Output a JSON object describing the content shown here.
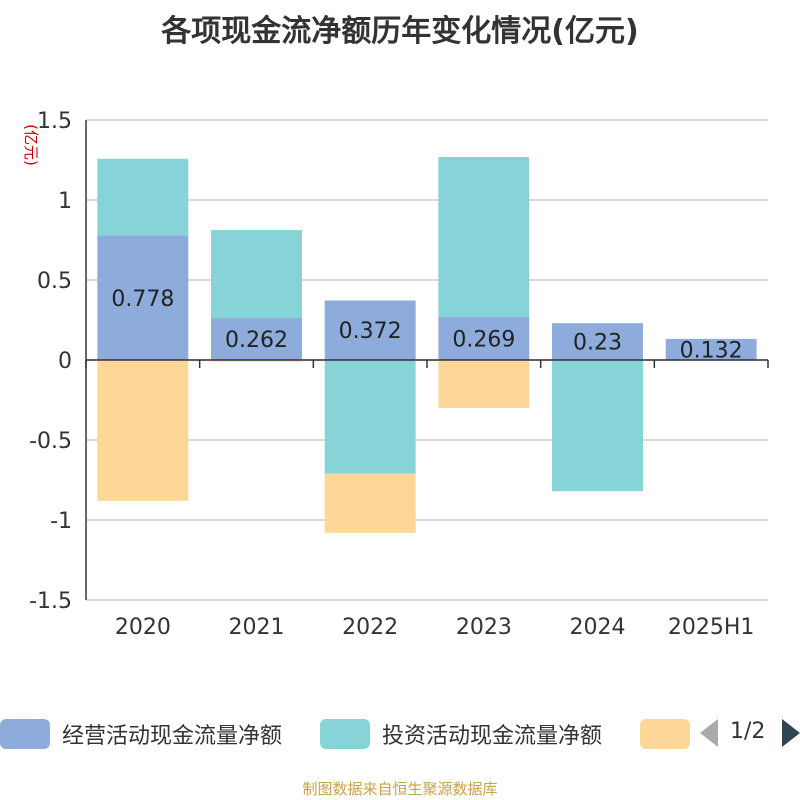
{
  "chart_data": {
    "type": "bar",
    "stacked": true,
    "title": "各项现金流净额历年变化情况(亿元)",
    "ylabel": "(亿元)",
    "categories": [
      "2020",
      "2021",
      "2022",
      "2023",
      "2024",
      "2025H1"
    ],
    "ylim": [
      -1.5,
      1.5
    ],
    "yticks": [
      "1.5",
      "1",
      "0.5",
      "0",
      "-0.5",
      "-1",
      "-1.5"
    ],
    "ytick_values": [
      1.5,
      1,
      0.5,
      0,
      -0.5,
      -1,
      -1.5
    ],
    "grid": true,
    "legend_position": "bottom",
    "series": [
      {
        "name": "经营活动现金流量净额",
        "color": "#8eacdb",
        "values": [
          0.778,
          0.262,
          0.372,
          0.269,
          0.23,
          0.132
        ],
        "labels": [
          "0.778",
          "0.262",
          "0.372",
          "0.269",
          "0.23",
          "0.132"
        ]
      },
      {
        "name": "投资活动现金流量净额",
        "color": "#86d4d8",
        "values": [
          0.48,
          0.55,
          -0.71,
          1.0,
          -0.82,
          0.0
        ]
      },
      {
        "name": "",
        "color": "#fdd797",
        "values": [
          -0.88,
          -0.01,
          -0.37,
          -0.3,
          0.0,
          0.0
        ]
      }
    ]
  },
  "legend": {
    "pager": "1/2"
  },
  "footer": {
    "source": "制图数据来自恒生聚源数据库"
  }
}
